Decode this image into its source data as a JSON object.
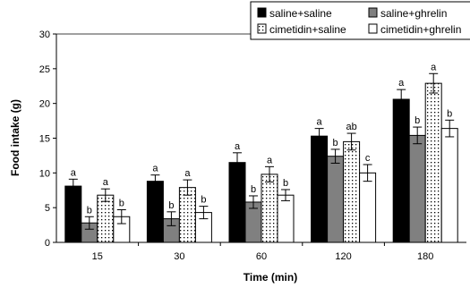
{
  "chart_data": {
    "type": "bar",
    "xlabel": "Time (min)",
    "ylabel": "Food intake (g)",
    "ylim": [
      0,
      30
    ],
    "yticks": [
      0,
      5,
      10,
      15,
      20,
      25,
      30
    ],
    "grid": false,
    "legend_position": "top-right",
    "categories": [
      "15",
      "30",
      "60",
      "120",
      "180"
    ],
    "series": [
      {
        "name": "saline+saline",
        "fill": "#000000",
        "pattern": "solid",
        "values": [
          8.1,
          8.8,
          11.5,
          15.3,
          20.6
        ],
        "errors": [
          1.0,
          0.9,
          1.4,
          1.1,
          1.4
        ],
        "labels": [
          "a",
          "a",
          "a",
          "a",
          "a"
        ]
      },
      {
        "name": "saline+ghrelin",
        "fill": "#808080",
        "pattern": "solid",
        "values": [
          2.8,
          3.4,
          5.8,
          12.4,
          15.4
        ],
        "errors": [
          0.9,
          1.0,
          0.9,
          1.0,
          1.2
        ],
        "labels": [
          "b",
          "b",
          "b",
          "b",
          "b"
        ]
      },
      {
        "name": "cimetidin+saline",
        "fill": "#ffffff",
        "pattern": "dotted",
        "values": [
          6.8,
          7.9,
          9.8,
          14.5,
          22.9
        ],
        "errors": [
          0.9,
          1.1,
          1.1,
          1.2,
          1.4
        ],
        "labels": [
          "a",
          "a",
          "a",
          "ab",
          "a"
        ]
      },
      {
        "name": "cimetidin+ghrelin",
        "fill": "#ffffff",
        "pattern": "solid",
        "values": [
          3.7,
          4.3,
          6.8,
          10.0,
          16.4
        ],
        "errors": [
          1.0,
          0.9,
          0.8,
          1.2,
          1.2
        ],
        "labels": [
          "b",
          "b",
          "b",
          "c",
          "b"
        ]
      }
    ]
  }
}
